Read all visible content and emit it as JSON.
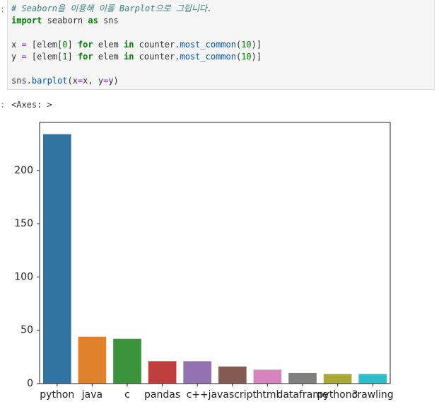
{
  "notebook": {
    "input_prompt": ":",
    "code_lines": [
      [
        {
          "text": "# Seaborn을 이용해 이를 Barplot으로 그립니다.",
          "color": "#3d7f7f",
          "italic": true
        }
      ],
      [
        {
          "text": "import",
          "color": "#008000",
          "bold": true
        },
        {
          "text": " seaborn "
        },
        {
          "text": "as",
          "color": "#008000",
          "bold": true
        },
        {
          "text": " sns"
        }
      ],
      [],
      [
        {
          "text": "x "
        },
        {
          "text": "=",
          "color": "#aa22ff"
        },
        {
          "text": " [elem["
        },
        {
          "text": "0",
          "color": "#008000"
        },
        {
          "text": "] "
        },
        {
          "text": "for",
          "color": "#008000",
          "bold": true
        },
        {
          "text": " elem "
        },
        {
          "text": "in",
          "color": "#008000",
          "bold": true
        },
        {
          "text": " counter."
        },
        {
          "text": "most_common",
          "color": "#0055aa"
        },
        {
          "text": "("
        },
        {
          "text": "10",
          "color": "#008000"
        },
        {
          "text": ")]"
        }
      ],
      [
        {
          "text": "y "
        },
        {
          "text": "=",
          "color": "#aa22ff"
        },
        {
          "text": " [elem["
        },
        {
          "text": "1",
          "color": "#008000"
        },
        {
          "text": "] "
        },
        {
          "text": "for",
          "color": "#008000",
          "bold": true
        },
        {
          "text": " elem "
        },
        {
          "text": "in",
          "color": "#008000",
          "bold": true
        },
        {
          "text": " counter."
        },
        {
          "text": "most_common",
          "color": "#0055aa"
        },
        {
          "text": "("
        },
        {
          "text": "10",
          "color": "#008000"
        },
        {
          "text": ")]"
        }
      ],
      [],
      [
        {
          "text": "sns."
        },
        {
          "text": "barplot",
          "color": "#0055aa"
        },
        {
          "text": "(x"
        },
        {
          "text": "=",
          "color": "#aa22ff"
        },
        {
          "text": "x, y"
        },
        {
          "text": "=",
          "color": "#aa22ff"
        },
        {
          "text": "y)"
        }
      ]
    ],
    "output_prompt": ":",
    "output_text": "<Axes: >"
  },
  "chart_data": {
    "type": "bar",
    "categories": [
      "python",
      "java",
      "c",
      "pandas",
      "c++",
      "javascript",
      "html",
      "dataframe",
      "python3",
      "crawling"
    ],
    "values": [
      234,
      44,
      42,
      21,
      21,
      16,
      13,
      10,
      9,
      9
    ],
    "colors": [
      "#3274a1",
      "#e1812c",
      "#3a923a",
      "#c03d3e",
      "#9372b2",
      "#845b53",
      "#d684bd",
      "#7f7f7f",
      "#a9aa35",
      "#2fbec9"
    ],
    "ylim": [
      0,
      245
    ],
    "yticks": [
      0,
      50,
      100,
      150,
      200
    ],
    "grid": false
  }
}
